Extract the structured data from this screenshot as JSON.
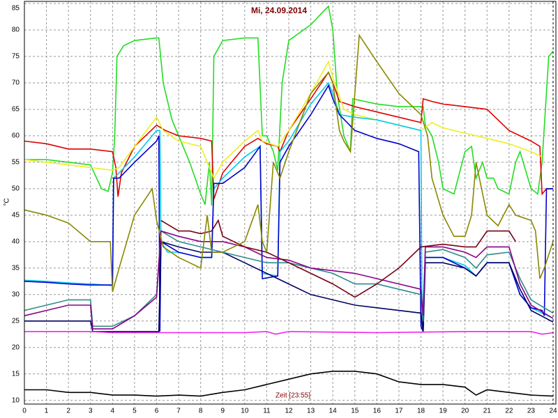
{
  "chart_data": {
    "type": "line",
    "title": "Mi, 24.09.2014",
    "xlabel": "Zeit [23:55]",
    "ylabel": "°C",
    "xlim": [
      0,
      24
    ],
    "xticks": [
      0,
      1,
      2,
      3,
      4,
      5,
      6,
      7,
      8,
      9,
      10,
      11,
      12,
      13,
      14,
      15,
      16,
      17,
      18,
      19,
      20,
      21,
      22,
      23,
      24
    ],
    "ylim": [
      9.3,
      85.4
    ],
    "yticks": [
      10,
      15,
      20,
      25,
      30,
      35,
      40,
      45,
      50,
      55,
      60,
      65,
      70,
      75,
      80,
      85
    ],
    "grid": true,
    "series": [
      {
        "color": "#22dd22",
        "x": [
          0,
          1,
          2,
          3,
          3.5,
          3.8,
          4,
          4.1,
          4.2,
          4.5,
          5,
          6,
          6.1,
          6.3,
          6.7,
          7,
          7.5,
          8,
          8.2,
          8.4,
          8.5,
          8.6,
          9,
          10,
          10.6,
          10.8,
          11,
          11.3,
          11.5,
          11.7,
          12,
          13,
          13.8,
          14,
          14.2,
          14.5,
          14.8,
          14.9,
          16,
          17,
          18.1,
          18.2,
          18.5,
          18.8,
          19,
          19.5,
          20,
          20.3,
          20.5,
          20.8,
          21,
          21.3,
          21.5,
          22,
          22.3,
          22.5,
          23,
          23.3,
          23.5,
          23.8,
          24
        ],
        "values": [
          55.5,
          55.5,
          55,
          54.5,
          50,
          49.5,
          53,
          60,
          75,
          77,
          78,
          78.5,
          78.5,
          70,
          63,
          60,
          55,
          49,
          47,
          55,
          46.8,
          75,
          78,
          78.5,
          78.5,
          60,
          60,
          57,
          53.5,
          70,
          78,
          81,
          84.5,
          80,
          68,
          60,
          57,
          67,
          66,
          65.5,
          65.5,
          62,
          60,
          55,
          50,
          49,
          57,
          58,
          52,
          55,
          52,
          52,
          50,
          49,
          55,
          57,
          50,
          49,
          55,
          75,
          76
        ]
      },
      {
        "color": "#dd0000",
        "x": [
          0,
          1,
          2,
          3,
          4,
          4.15,
          4.25,
          4.4,
          5,
          6,
          6.4,
          7,
          8,
          8.5,
          8.6,
          9,
          10,
          10.6,
          11,
          11.5,
          11.6,
          11.8,
          12,
          13,
          13.8,
          14,
          14.3,
          15,
          16,
          17,
          18,
          18.1,
          18.5,
          19,
          20,
          21,
          21.5,
          22,
          23,
          23.4,
          23.5,
          23.7,
          24
        ],
        "values": [
          59,
          58.5,
          57.5,
          57.5,
          57,
          54,
          48.5,
          53,
          58,
          62,
          61,
          60,
          59.5,
          59,
          48,
          53,
          58,
          59.5,
          58.5,
          58,
          57,
          59,
          61,
          67,
          72,
          70,
          66.5,
          65.5,
          64.5,
          63.5,
          62.5,
          67,
          66.5,
          66,
          65.5,
          65,
          63,
          61,
          59,
          58,
          49,
          50,
          50
        ]
      },
      {
        "color": "#eeee22",
        "x": [
          0,
          1,
          2,
          3,
          4,
          4.3,
          5,
          6,
          6.3,
          7,
          8,
          8.6,
          9,
          10,
          10.6,
          10.8,
          11.5,
          12,
          13,
          13.8,
          14,
          14.5,
          15,
          16,
          17,
          18,
          18.5,
          19,
          20,
          21,
          22,
          23,
          23.5
        ],
        "values": [
          55.5,
          55,
          54.5,
          54,
          53.5,
          54,
          58,
          63.5,
          61,
          59,
          58,
          52,
          55,
          59,
          61,
          59,
          58,
          61,
          68,
          74,
          71,
          65,
          64,
          63,
          62,
          61,
          62.5,
          61.5,
          60.5,
          59.5,
          58.5,
          57,
          56
        ]
      },
      {
        "color": "#00ccee",
        "x": [
          0,
          1,
          2,
          3,
          4,
          4.05,
          4.3,
          5,
          6,
          6.15,
          6.2,
          6.5,
          7,
          8,
          8.5,
          8.6,
          9,
          10,
          10.7,
          10.8,
          11.5,
          11.6,
          12,
          13,
          13.8,
          14,
          14.3,
          15,
          16,
          17,
          18,
          18.05,
          18.2,
          19,
          20,
          20.5,
          21,
          22,
          22.5,
          23,
          23.5,
          24
        ],
        "values": [
          32.7,
          32.5,
          32.2,
          32,
          31.7,
          52,
          53,
          56,
          61,
          61,
          40,
          38,
          38,
          37,
          37,
          50,
          52,
          56,
          58,
          34,
          33.5,
          57,
          59,
          66,
          70,
          68,
          64,
          63.5,
          63,
          62,
          61,
          24,
          37,
          37,
          35.5,
          33.5,
          36,
          36,
          30,
          27.5,
          26.5,
          25.5
        ]
      },
      {
        "color": "#0000cc",
        "x": [
          0,
          1,
          2,
          3,
          4,
          4.05,
          4.3,
          5,
          6,
          6.1,
          6.15,
          6.2,
          7,
          8,
          8.5,
          8.6,
          9,
          10,
          10.7,
          10.8,
          11.5,
          11.6,
          12,
          13,
          13.8,
          14,
          14.3,
          15,
          16,
          17,
          17.9,
          18,
          18.1,
          18.2,
          19,
          20,
          20.5,
          21,
          22,
          22.5,
          23,
          23.5,
          23.6,
          23.7,
          24
        ],
        "values": [
          32.5,
          32.3,
          32,
          31.8,
          31.8,
          52,
          52,
          55,
          59,
          60,
          23,
          40,
          38,
          37,
          37,
          51,
          51,
          54,
          58,
          33,
          33.5,
          55,
          58,
          64,
          69.5,
          67,
          64,
          61,
          59.5,
          58.5,
          57,
          24,
          23,
          37,
          37,
          35,
          33.5,
          36,
          36,
          30,
          27.5,
          27,
          26,
          50,
          50
        ]
      },
      {
        "color": "#000066",
        "x": [
          0,
          1,
          2,
          3,
          3.1,
          4,
          5,
          6,
          6.1,
          6.2,
          7,
          8,
          9,
          10,
          11,
          12,
          13,
          14,
          15,
          16,
          17,
          18,
          18.1,
          18.2,
          19,
          20,
          20.5,
          21,
          22,
          22.5,
          23,
          24
        ],
        "values": [
          25,
          25,
          25,
          25,
          23,
          23,
          23,
          23,
          23,
          40,
          39,
          38,
          38,
          36,
          34,
          32,
          30,
          29,
          28,
          27.5,
          27,
          26.5,
          23,
          36,
          36,
          35,
          33.5,
          36,
          36,
          31,
          27,
          24.8
        ]
      },
      {
        "color": "#2e8b8b",
        "x": [
          0,
          1,
          2,
          3,
          3.1,
          4,
          5,
          6,
          6.2,
          7,
          8,
          9,
          10,
          11,
          12,
          13,
          14,
          15,
          16,
          17,
          18,
          18.1,
          18.2,
          19,
          20,
          20.5,
          21,
          22,
          22.5,
          23,
          24
        ],
        "values": [
          27,
          28,
          29,
          29,
          24,
          24,
          26,
          30,
          42,
          40,
          39,
          38,
          37,
          36,
          36,
          35,
          34,
          32,
          32,
          31,
          30,
          25,
          38,
          38.5,
          37,
          35,
          37.5,
          38,
          33,
          29,
          26.5
        ]
      },
      {
        "color": "#880088",
        "x": [
          0,
          1,
          2,
          3,
          3.1,
          4,
          5,
          6,
          6.2,
          7,
          8,
          9,
          10,
          11,
          12,
          13,
          14,
          15,
          16,
          17,
          18,
          18.1,
          18.2,
          19,
          20,
          20.5,
          21,
          22,
          22.5,
          23,
          24
        ],
        "values": [
          26,
          27,
          28,
          28,
          23.5,
          23.5,
          26,
          29.5,
          42,
          41,
          40,
          40,
          39,
          37,
          36.5,
          35,
          34.5,
          34,
          33,
          32,
          31,
          26,
          39,
          39,
          38,
          37,
          39,
          39,
          32,
          28,
          25.5
        ]
      },
      {
        "color": "#770011",
        "x": [
          6.2,
          7,
          7.5,
          8,
          8.5,
          8.8,
          9,
          10,
          11,
          12,
          13,
          14,
          15,
          16,
          17,
          18,
          19,
          20,
          20.5,
          21,
          22,
          22.3
        ],
        "values": [
          44,
          42,
          42,
          41.5,
          42,
          44,
          41,
          39,
          38,
          36,
          34,
          32,
          29.5,
          32,
          35,
          39,
          39.5,
          39,
          39,
          42,
          42,
          40
        ]
      },
      {
        "color": "#888800",
        "x": [
          0,
          1,
          2,
          3,
          3.9,
          4,
          4.3,
          5,
          5.8,
          6,
          6.3,
          7,
          7.5,
          8,
          8.3,
          8.5,
          9,
          10,
          10.6,
          10.8,
          11,
          11.3,
          11.6,
          12,
          13,
          13.8,
          14,
          14.3,
          14.5,
          14.8,
          15.2,
          16,
          17,
          18,
          18.3,
          18.5,
          19,
          19.5,
          20,
          20.3,
          20.5,
          21,
          21.5,
          22,
          22.3,
          23,
          23.2,
          23.4,
          23.6,
          24
        ],
        "values": [
          46,
          45,
          43.5,
          40,
          40,
          30.5,
          35,
          45,
          50,
          44,
          39,
          37,
          36,
          35,
          45,
          38,
          38,
          40,
          47,
          40,
          38,
          55,
          52,
          57,
          68,
          72,
          70,
          61,
          59,
          57,
          79,
          74,
          68,
          64,
          60,
          52,
          45,
          41,
          41,
          45,
          55,
          45,
          43,
          47,
          45,
          44,
          42,
          33,
          35,
          40
        ]
      },
      {
        "color": "#ee22ee",
        "x": [
          0,
          3,
          4,
          6,
          10,
          11,
          11.4,
          12,
          16,
          20,
          23,
          23.5,
          24
        ],
        "values": [
          23,
          23,
          22.8,
          22.8,
          22.8,
          23,
          22.5,
          23,
          22.8,
          23,
          23,
          22.5,
          22.8
        ]
      },
      {
        "color": "#000000",
        "x": [
          0,
          1,
          2,
          3,
          4,
          5,
          6,
          7,
          8,
          9,
          10,
          11,
          12,
          13,
          14,
          15,
          16,
          17,
          18,
          19,
          20,
          20.5,
          21,
          22,
          23,
          24
        ],
        "values": [
          12,
          12,
          11.5,
          11.5,
          11,
          11,
          10.8,
          11,
          10.8,
          11.5,
          12,
          13,
          14,
          15,
          15.5,
          15.5,
          15,
          13.5,
          13,
          13,
          12.5,
          11,
          12,
          11.5,
          11,
          10.8
        ]
      }
    ]
  }
}
